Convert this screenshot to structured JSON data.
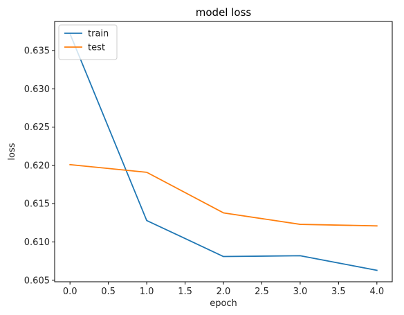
{
  "chart_data": {
    "type": "line",
    "title": "model loss",
    "xlabel": "epoch",
    "ylabel": "loss",
    "x": [
      0,
      1,
      2,
      3,
      4
    ],
    "xlim": [
      -0.2,
      4.2
    ],
    "ylim": [
      0.6048,
      0.6388
    ],
    "xticks": [
      0.0,
      0.5,
      1.0,
      1.5,
      2.0,
      2.5,
      3.0,
      3.5,
      4.0
    ],
    "xtick_labels": [
      "0.0",
      "0.5",
      "1.0",
      "1.5",
      "2.0",
      "2.5",
      "3.0",
      "3.5",
      "4.0"
    ],
    "yticks": [
      0.605,
      0.61,
      0.615,
      0.62,
      0.625,
      0.63,
      0.635
    ],
    "ytick_labels": [
      "0.605",
      "0.610",
      "0.615",
      "0.620",
      "0.625",
      "0.630",
      "0.635"
    ],
    "grid": false,
    "legend_position": "top-left",
    "series": [
      {
        "name": "train",
        "color": "#1f77b4",
        "values": [
          0.6372,
          0.6128,
          0.6081,
          0.6082,
          0.6063
        ]
      },
      {
        "name": "test",
        "color": "#ff7f0e",
        "values": [
          0.6201,
          0.6191,
          0.6138,
          0.6123,
          0.6121
        ]
      }
    ]
  }
}
